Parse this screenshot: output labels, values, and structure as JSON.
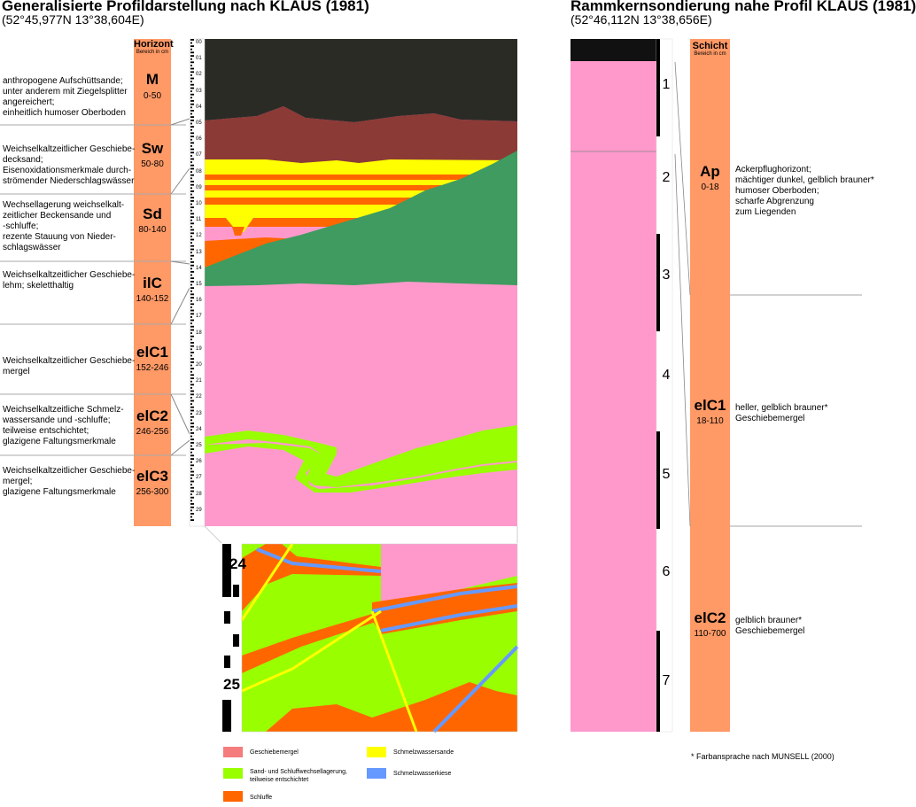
{
  "left": {
    "title": "Generalisierte Profildarstellung nach KLAUS (1981)",
    "coords": "(52°45,977N 13°38,604E)",
    "column_header": "Horizont",
    "column_sub": "Bereich in cm",
    "horizons": [
      {
        "code": "M",
        "range": "0-50",
        "desc": [
          "anthropogene Aufschüttsande;",
          "unter anderem mit Ziegelsplitter",
          "angereichert;",
          "einheitlich humoser Oberboden"
        ]
      },
      {
        "code": "Sw",
        "range": "50-80",
        "desc": [
          "Weichselkaltzeitlicher Geschiebe-",
          "decksand;",
          "Eisenoxidationsmerkmale durch-",
          "strömender Niederschlagswässer"
        ]
      },
      {
        "code": "Sd",
        "range": "80-140",
        "desc": [
          "Wechsellagerung weichselkalt-",
          "zeitlicher Beckensande und",
          "-schluffe;",
          "rezente Stauung von Nieder-",
          "schlagswässer"
        ]
      },
      {
        "code": "ilC",
        "range": "140-152",
        "desc": [
          "Weichselkaltzeitlicher Geschiebe-",
          "lehm; skeletthaltig"
        ]
      },
      {
        "code": "elC1",
        "range": "152-246",
        "desc": [
          "Weichselkaltzeitlicher Geschiebe-",
          "mergel"
        ]
      },
      {
        "code": "elC2",
        "range": "246-256",
        "desc": [
          "Weichselkaltzeitliche Schmelz-",
          "wassersande und -schluffe;",
          "teilweise entschichtet;",
          "glazigene Faltungsmerkmale"
        ]
      },
      {
        "code": "elC3",
        "range": "256-300",
        "desc": [
          "Weichselkaltzeitlicher Geschiebe-",
          "mergel;",
          "glazigene Faltungsmerkmale"
        ]
      }
    ],
    "scale_ticks": [
      "00",
      "01",
      "02",
      "03",
      "04",
      "05",
      "06",
      "07",
      "08",
      "09",
      "10",
      "11",
      "12",
      "13",
      "14",
      "15",
      "16",
      "17",
      "18",
      "19",
      "20",
      "21",
      "22",
      "23",
      "24",
      "25",
      "26",
      "27",
      "28",
      "29"
    ],
    "detail_ticks": [
      "24",
      "25"
    ]
  },
  "right": {
    "title": "Rammkernsondierung nahe Profil KLAUS (1981)",
    "coords": "(52°46,112N 13°38,656E)",
    "column_header": "Schicht",
    "column_sub": "Bereich in cm",
    "segments": [
      "1",
      "2",
      "3",
      "4",
      "5",
      "6",
      "7"
    ],
    "layers": [
      {
        "code": "Ap",
        "range": "0-18",
        "desc": [
          "Ackerpflughorizont;",
          "mächtiger dunkel, gelblich brauner*",
          "humoser Oberboden;",
          "scharfe Abgrenzung",
          "zum Liegenden"
        ]
      },
      {
        "code": "elC1",
        "range": "18-110",
        "desc": [
          "heller, gelblich brauner*",
          "Geschiebemergel"
        ]
      },
      {
        "code": "elC2",
        "range": "110-700",
        "desc": [
          "gelblich brauner*",
          "Geschiebemergel"
        ]
      }
    ]
  },
  "legend": [
    {
      "label": [
        "Geschiebemergel"
      ],
      "color": "#f47c7c"
    },
    {
      "label": [
        "Schmelzwassersande"
      ],
      "color": "#ffff00"
    },
    {
      "label": [
        "Sand- und Schluffwechsellagerung,",
        "teilweise entschichtet"
      ],
      "color": "#99ff00"
    },
    {
      "label": [
        "Schmelzwasserkiese"
      ],
      "color": "#6699ff"
    },
    {
      "label": [
        "Schluffe"
      ],
      "color": "#ff6600"
    }
  ],
  "footnote": "* Farbansprache nach MUNSELL (2000)",
  "colors": {
    "column_fill": "#ff9966",
    "topsoil": "#2b2b26",
    "brown": "#8c3a36",
    "green": "#3f9b60",
    "pink": "#ff99cc",
    "lime": "#99ff00",
    "orange": "#ff6600",
    "yellow": "#ffff00",
    "blue": "#6699ff"
  }
}
